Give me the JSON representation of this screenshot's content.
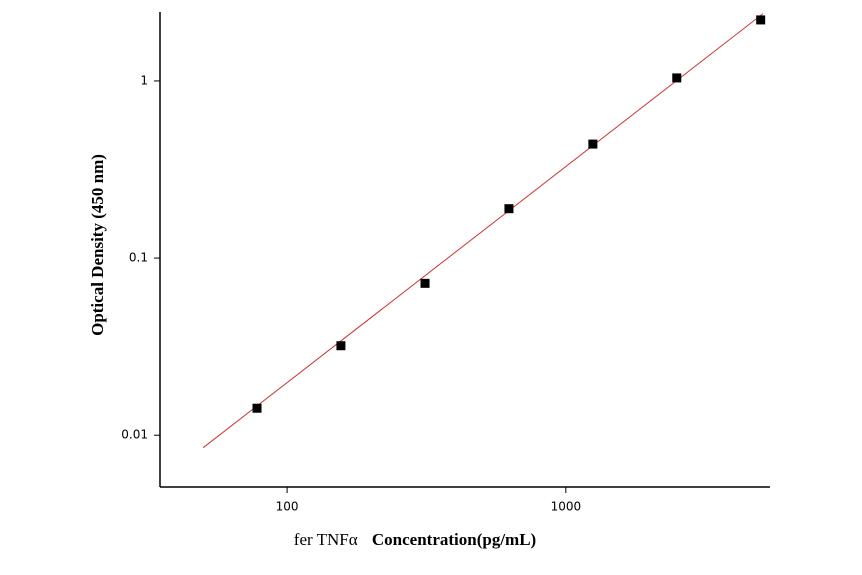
{
  "chart_data": {
    "type": "scatter",
    "xlabel": [
      "fer TNFα",
      "Concentration(pg/mL)"
    ],
    "ylabel": "Optical Density (450 nm)",
    "xscale": "log",
    "yscale": "log",
    "xlim": [
      35,
      5400
    ],
    "ylim": [
      0.0051,
      2.45
    ],
    "xticks": [
      100,
      1000
    ],
    "yticks": [
      0.01,
      0.1,
      1
    ],
    "series": [
      {
        "type": "scatter",
        "color": "#000000",
        "x": [
          78,
          156,
          312.5,
          625,
          1250,
          2500,
          5000
        ],
        "values": [
          0.0142,
          0.032,
          0.072,
          0.19,
          0.44,
          1.04,
          2.21
        ]
      },
      {
        "type": "line",
        "color": "#cc3333",
        "x": [
          50,
          5100
        ],
        "values": [
          0.0085,
          2.4
        ]
      }
    ]
  }
}
